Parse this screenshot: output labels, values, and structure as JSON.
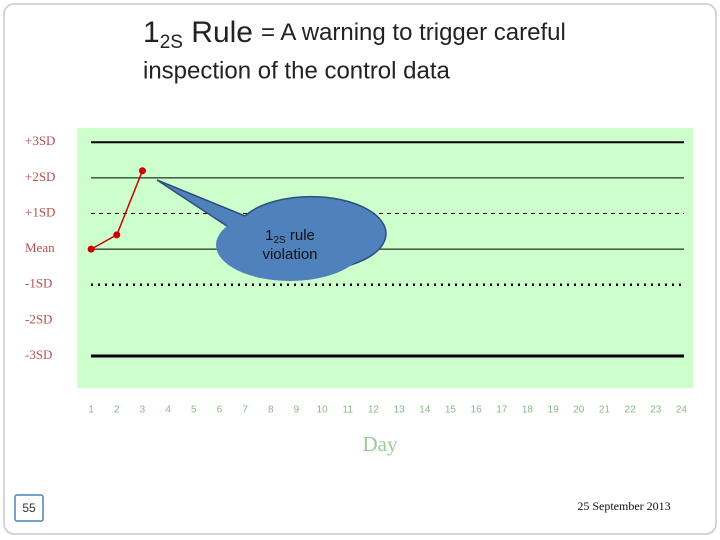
{
  "chart_data": {
    "type": "line",
    "title": {
      "lead": "1",
      "sub": "2S",
      "rule": " Rule",
      "line1": "= A warning to trigger careful",
      "line2": "inspection of the control data"
    },
    "annotation": {
      "lead": "1",
      "sub": "2S",
      "rule": " rule",
      "line2": "violation"
    },
    "x_label": "Day",
    "x": [
      1,
      2,
      3,
      4,
      5,
      6,
      7,
      8,
      9,
      10,
      11,
      12,
      13,
      14,
      15,
      16,
      17,
      18,
      19,
      20,
      21,
      22,
      23,
      24
    ],
    "xlim": [
      0.45,
      24.45
    ],
    "series": [
      {
        "color": "#cc0000",
        "values": [
          0,
          0.4,
          2.2,
          null,
          null,
          null,
          null,
          null,
          null,
          null,
          null,
          null,
          null,
          null,
          null,
          null,
          null,
          null,
          null,
          null,
          null,
          null,
          null,
          null
        ]
      }
    ],
    "ylim": [
      -3.9,
      3.4
    ],
    "yticks": [
      {
        "value": 3,
        "label": "+3SD"
      },
      {
        "value": 2,
        "label": "+2SD"
      },
      {
        "value": 1,
        "label": "+1SD"
      },
      {
        "value": 0,
        "label": "Mean"
      },
      {
        "value": -1,
        "label": "-1SD"
      },
      {
        "value": -2,
        "label": "-2SD"
      },
      {
        "value": -3,
        "label": "-3SD"
      }
    ],
    "background": "#ccffcc",
    "slide_number": "55",
    "date": "25 September 2013"
  }
}
